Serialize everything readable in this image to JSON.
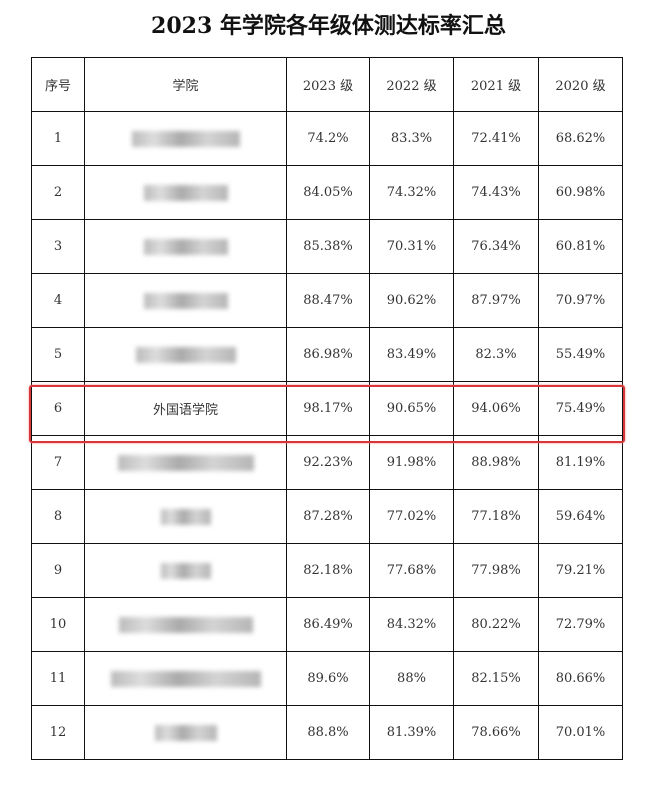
{
  "title": "2023 年学院各年级体测达标率汇总",
  "headers": [
    "序号",
    "学院",
    "2023 级",
    "2022 级",
    "2021 级",
    "2020 级"
  ],
  "highlight_color": "#d9363a",
  "highlighted_row": 6,
  "rows": [
    {
      "no": "1",
      "college": "",
      "values": [
        "74.2%",
        "83.3%",
        "72.41%",
        "68.62%"
      ]
    },
    {
      "no": "2",
      "college": "",
      "values": [
        "84.05%",
        "74.32%",
        "74.43%",
        "60.98%"
      ]
    },
    {
      "no": "3",
      "college": "",
      "values": [
        "85.38%",
        "70.31%",
        "76.34%",
        "60.81%"
      ]
    },
    {
      "no": "4",
      "college": "",
      "values": [
        "88.47%",
        "90.62%",
        "87.97%",
        "70.97%"
      ]
    },
    {
      "no": "5",
      "college": "",
      "values": [
        "86.98%",
        "83.49%",
        "82.3%",
        "55.49%"
      ]
    },
    {
      "no": "6",
      "college": "外国语学院",
      "values": [
        "98.17%",
        "90.65%",
        "94.06%",
        "75.49%"
      ]
    },
    {
      "no": "7",
      "college": "",
      "values": [
        "92.23%",
        "91.98%",
        "88.98%",
        "81.19%"
      ]
    },
    {
      "no": "8",
      "college": "",
      "values": [
        "87.28%",
        "77.02%",
        "77.18%",
        "59.64%"
      ]
    },
    {
      "no": "9",
      "college": "",
      "values": [
        "82.18%",
        "77.68%",
        "77.98%",
        "79.21%"
      ]
    },
    {
      "no": "10",
      "college": "",
      "values": [
        "86.49%",
        "84.32%",
        "80.22%",
        "72.79%"
      ]
    },
    {
      "no": "11",
      "college": "",
      "values": [
        "89.6%",
        "88%",
        "82.15%",
        "80.66%"
      ]
    },
    {
      "no": "12",
      "college": "",
      "values": [
        "88.8%",
        "81.39%",
        "78.66%",
        "70.01%"
      ]
    }
  ]
}
